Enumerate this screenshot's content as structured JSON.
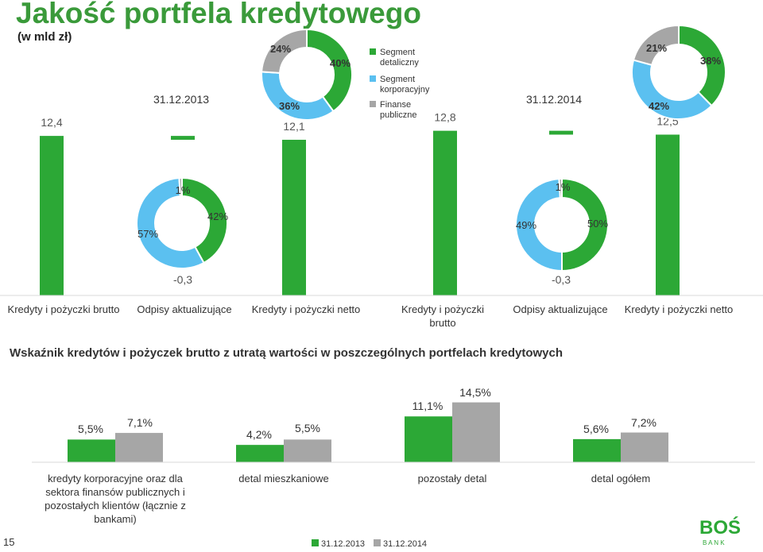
{
  "header": {
    "title": "Jakość portfela kredytowego",
    "subtitle": "(w mld zł)"
  },
  "footer": {
    "page_number": "15",
    "logo_text": "BOŚ",
    "logo_sub": "B A N K"
  },
  "colors": {
    "green": "#2ca836",
    "light_blue": "#5bc0f0",
    "gray": "#a6a6a6",
    "title_green": "#3a9a3a"
  },
  "chart_data": [
    {
      "type": "bar",
      "id": "portfolio-waterfall",
      "title": "",
      "categories": [
        "Kredyty i pożyczki brutto",
        "Odpisy aktualizujące",
        "Kredyty i pożyczki netto",
        "Kredyty i pożyczki brutto",
        "Odpisy aktualizujące",
        "Kredyty i pożyczki netto"
      ],
      "values": [
        12.4,
        -0.3,
        12.1,
        12.8,
        -0.3,
        12.5
      ],
      "value_labels": [
        "12,4",
        "-0,3",
        "12,1",
        "12,8",
        "-0,3",
        "12,5"
      ],
      "period_labels": [
        "31.12.2013",
        "31.12.2014"
      ],
      "series_color": "#2ca836"
    },
    {
      "type": "pie",
      "id": "donut-2013-gross",
      "legend": [
        "Segment detaliczny",
        "Segment korporacyjny",
        "Finanse publiczne"
      ],
      "values": [
        40,
        36,
        24
      ],
      "labels": [
        "40%",
        "36%",
        "24%"
      ],
      "colors": [
        "#2ca836",
        "#5bc0f0",
        "#a6a6a6"
      ]
    },
    {
      "type": "pie",
      "id": "donut-2014-gross",
      "values": [
        38,
        42,
        21
      ],
      "labels": [
        "38%",
        "42%",
        "21%"
      ],
      "colors": [
        "#2ca836",
        "#5bc0f0",
        "#a6a6a6"
      ]
    },
    {
      "type": "pie",
      "id": "donut-2013-writedowns",
      "values": [
        42,
        57,
        1
      ],
      "labels": [
        "42%",
        "57%",
        "1%"
      ],
      "colors": [
        "#2ca836",
        "#5bc0f0",
        "#a6a6a6"
      ]
    },
    {
      "type": "pie",
      "id": "donut-2014-writedowns",
      "values": [
        50,
        49,
        1
      ],
      "labels": [
        "50%",
        "49%",
        "1%"
      ],
      "colors": [
        "#2ca836",
        "#5bc0f0",
        "#a6a6a6"
      ]
    },
    {
      "type": "bar",
      "id": "impaired-ratio",
      "title": "Wskaźnik kredytów i pożyczek brutto z utratą wartości w poszczególnych portfelach kredytowych",
      "categories": [
        "kredyty korporacyjne oraz dla sektora finansów publicznych i pozostałych klientów (łącznie z bankami)",
        "detal mieszkaniowe",
        "pozostały detal",
        "detal ogółem"
      ],
      "series": [
        {
          "name": "31.12.2013",
          "values": [
            5.5,
            4.2,
            11.1,
            5.6
          ],
          "labels": [
            "5,5%",
            "4,2%",
            "11,1%",
            "5,6%"
          ],
          "color": "#2ca836"
        },
        {
          "name": "31.12.2014",
          "values": [
            7.1,
            5.5,
            14.5,
            7.2
          ],
          "labels": [
            "7,1%",
            "5,5%",
            "14,5%",
            "7,2%"
          ],
          "color": "#a6a6a6"
        }
      ],
      "ylim": [
        0,
        16
      ]
    }
  ]
}
